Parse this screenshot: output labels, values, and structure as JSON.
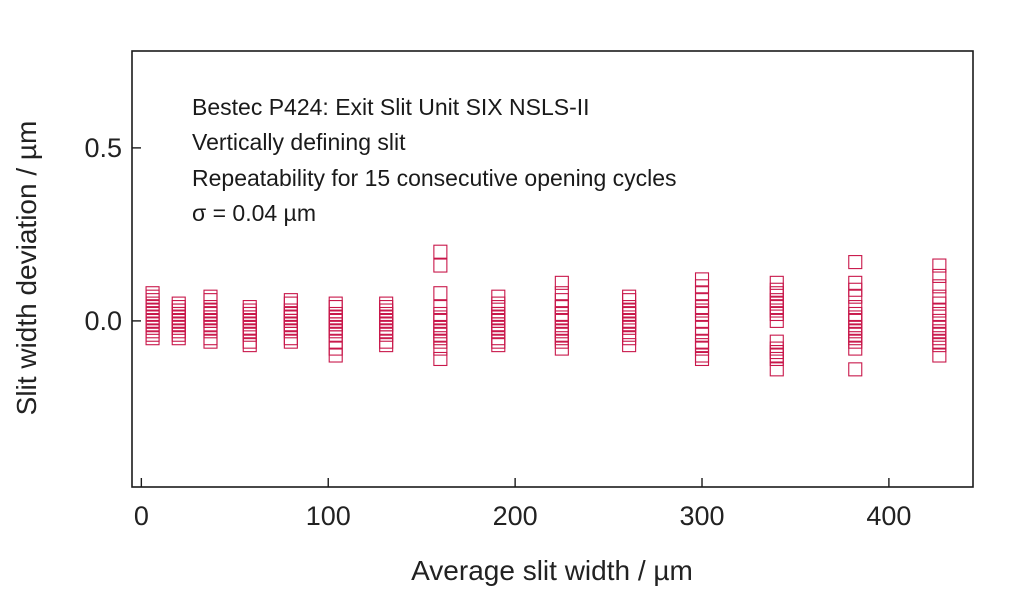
{
  "chart_data": {
    "type": "scatter",
    "xlabel": "Average slit width / µm",
    "ylabel": "Slit width deviation / µm",
    "xlim": [
      -5,
      445
    ],
    "ylim": [
      -0.48,
      0.78
    ],
    "x_ticks": [
      0,
      100,
      200,
      300,
      400
    ],
    "x_tick_labels": [
      "0",
      "100",
      "200",
      "300",
      "400"
    ],
    "y_ticks": [
      0.0,
      0.5
    ],
    "y_tick_labels": [
      "0.0",
      "0.5"
    ],
    "annotations": [
      "Bestec P424: Exit Slit Unit SIX NSLS-II",
      "Vertically defining slit",
      "Repeatability for 15 consecutive opening cycles",
      "σ = 0.04 µm"
    ],
    "marker": "open-square",
    "marker_color": "#c8174a",
    "frame_color": "#1a1a1a",
    "grid": false,
    "series": [
      {
        "groups": [
          {
            "x": 6,
            "y": [
              0.08,
              0.06,
              0.05,
              0.04,
              0.03,
              0.02,
              0.01,
              0.0,
              -0.01,
              -0.02,
              -0.03,
              -0.04,
              -0.05,
              0.07,
              0.0
            ]
          },
          {
            "x": 20,
            "y": [
              0.05,
              0.04,
              0.03,
              0.02,
              0.01,
              0.0,
              -0.01,
              -0.02,
              -0.03,
              -0.04,
              -0.05,
              0.02,
              0.0,
              -0.01,
              0.03
            ]
          },
          {
            "x": 37,
            "y": [
              0.07,
              0.06,
              0.04,
              0.03,
              0.02,
              0.01,
              0.0,
              -0.01,
              -0.02,
              -0.03,
              -0.05,
              -0.06,
              0.01,
              0.02,
              0.0
            ]
          },
          {
            "x": 58,
            "y": [
              0.04,
              0.03,
              0.02,
              0.01,
              0.0,
              -0.01,
              -0.02,
              -0.03,
              -0.04,
              -0.06,
              -0.07,
              0.0,
              0.01,
              -0.02,
              0.02
            ]
          },
          {
            "x": 80,
            "y": [
              0.06,
              0.05,
              0.03,
              0.02,
              0.01,
              0.0,
              -0.01,
              -0.02,
              -0.03,
              -0.05,
              -0.06,
              0.02,
              0.0,
              -0.01,
              0.01
            ]
          },
          {
            "x": 104,
            "y": [
              0.05,
              0.04,
              0.02,
              0.01,
              0.0,
              -0.01,
              -0.03,
              -0.04,
              -0.06,
              -0.08,
              -0.1,
              0.0,
              -0.02,
              0.01,
              -0.01
            ]
          },
          {
            "x": 131,
            "y": [
              0.05,
              0.04,
              0.03,
              0.02,
              0.01,
              0.0,
              -0.01,
              -0.02,
              -0.03,
              -0.04,
              -0.06,
              -0.07,
              0.0,
              0.01,
              -0.01
            ]
          },
          {
            "x": 160,
            "y": [
              0.2,
              0.16,
              0.08,
              0.04,
              0.02,
              0.0,
              -0.02,
              -0.03,
              -0.04,
              -0.06,
              -0.08,
              -0.11,
              0.01,
              -0.05,
              -0.02
            ]
          },
          {
            "x": 191,
            "y": [
              0.07,
              0.05,
              0.04,
              0.02,
              0.01,
              0.0,
              -0.01,
              -0.02,
              -0.03,
              -0.05,
              -0.06,
              -0.07,
              0.0,
              0.02,
              -0.01
            ]
          },
          {
            "x": 225,
            "y": [
              0.11,
              0.08,
              0.06,
              0.04,
              0.02,
              0.0,
              -0.02,
              -0.03,
              -0.05,
              -0.06,
              -0.08,
              0.04,
              0.01,
              -0.04,
              0.02
            ]
          },
          {
            "x": 261,
            "y": [
              0.07,
              0.06,
              0.04,
              0.03,
              0.02,
              0.01,
              0.0,
              -0.01,
              -0.02,
              -0.04,
              -0.05,
              -0.07,
              0.0,
              0.02,
              -0.01
            ]
          },
          {
            "x": 300,
            "y": [
              0.12,
              0.1,
              0.08,
              0.06,
              0.04,
              0.02,
              0.0,
              -0.02,
              -0.04,
              -0.06,
              -0.08,
              -0.1,
              -0.11,
              0.03,
              -0.07
            ]
          },
          {
            "x": 340,
            "y": [
              0.11,
              0.09,
              0.08,
              0.06,
              0.05,
              0.04,
              0.02,
              0.0,
              -0.06,
              -0.08,
              -0.09,
              -0.11,
              -0.14,
              0.03,
              -0.1
            ]
          },
          {
            "x": 382,
            "y": [
              0.17,
              0.11,
              0.09,
              0.07,
              0.04,
              0.02,
              0.0,
              -0.02,
              -0.04,
              -0.05,
              -0.06,
              -0.08,
              -0.14,
              0.01,
              -0.03
            ]
          },
          {
            "x": 427,
            "y": [
              0.16,
              0.13,
              0.1,
              0.07,
              0.05,
              0.02,
              0.0,
              -0.02,
              -0.03,
              -0.04,
              -0.05,
              -0.07,
              -0.1,
              0.03,
              -0.06
            ]
          }
        ]
      }
    ]
  }
}
